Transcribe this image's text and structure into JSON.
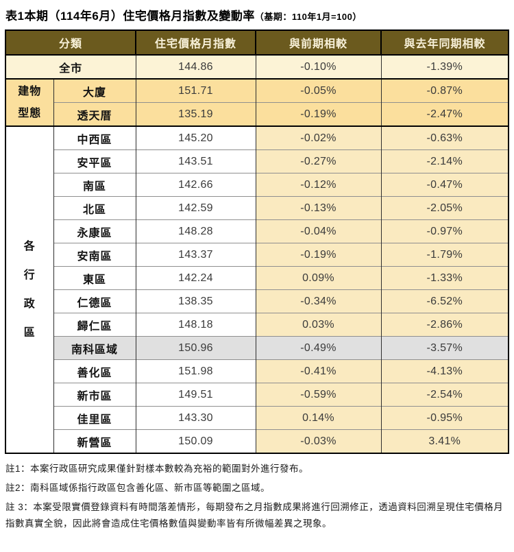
{
  "title": {
    "main": "表1本期（114年6月）住宅價格月指數及變動率",
    "suffix": "（基期：110年1月=100）"
  },
  "table": {
    "headers": [
      "分類",
      "住宅價格月指數",
      "與前期相較",
      "與去年同期相較"
    ],
    "sections": [
      {
        "kind": "citywide",
        "rows": [
          {
            "label": "全市",
            "index": "144.86",
            "mom": "-0.10%",
            "yoy": "-1.39%"
          }
        ]
      },
      {
        "kind": "group",
        "name": "建物型態",
        "name_lines": [
          "建物",
          "型態"
        ],
        "rows": [
          {
            "label": "大廈",
            "index": "151.71",
            "mom": "-0.05%",
            "yoy": "-0.87%"
          },
          {
            "label": "透天厝",
            "index": "135.19",
            "mom": "-0.19%",
            "yoy": "-2.47%"
          }
        ]
      },
      {
        "kind": "group",
        "name": "各行政區",
        "name_lines": [
          "各",
          "行",
          "政",
          "區"
        ],
        "rows": [
          {
            "label": "中西區",
            "index": "145.20",
            "mom": "-0.02%",
            "yoy": "-0.63%"
          },
          {
            "label": "安平區",
            "index": "143.51",
            "mom": "-0.27%",
            "yoy": "-2.14%"
          },
          {
            "label": "南區",
            "index": "142.66",
            "mom": "-0.12%",
            "yoy": "-0.47%"
          },
          {
            "label": "北區",
            "index": "142.59",
            "mom": "-0.13%",
            "yoy": "-2.05%"
          },
          {
            "label": "永康區",
            "index": "148.28",
            "mom": "-0.04%",
            "yoy": "-0.97%"
          },
          {
            "label": "安南區",
            "index": "143.37",
            "mom": "-0.19%",
            "yoy": "-1.79%"
          },
          {
            "label": "東區",
            "index": "142.24",
            "mom": "0.09%",
            "yoy": "-1.33%"
          },
          {
            "label": "仁德區",
            "index": "138.35",
            "mom": "-0.34%",
            "yoy": "-6.52%"
          },
          {
            "label": "歸仁區",
            "index": "148.18",
            "mom": "0.03%",
            "yoy": "-2.86%"
          },
          {
            "label": "南科區域",
            "index": "150.96",
            "mom": "-0.49%",
            "yoy": "-3.57%",
            "highlight": true
          },
          {
            "label": "善化區",
            "index": "151.98",
            "mom": "-0.41%",
            "yoy": "-4.13%"
          },
          {
            "label": "新市區",
            "index": "149.51",
            "mom": "-0.59%",
            "yoy": "-2.54%"
          },
          {
            "label": "佳里區",
            "index": "143.30",
            "mom": "0.14%",
            "yoy": "-0.95%"
          },
          {
            "label": "新營區",
            "index": "150.09",
            "mom": "-0.03%",
            "yoy": "3.41%"
          }
        ]
      }
    ]
  },
  "notes": [
    "註1：本案行政區研究成果僅針對樣本數較為充裕的範圍對外進行發布。",
    "註2：南科區域係指行政區包含善化區、新市區等範圍之區域。",
    "註 3：本案受限實價登錄資料有時間落差情形，每期發布之月指數成果將進行回溯修正，透過資料回溯呈現住宅價格月指數真實全貌，因此將會造成住宅價格數值與變動率皆有所微幅差異之現象。"
  ],
  "colors": {
    "header_bg": "#6b5a1e",
    "header_text": "#f8f1d9",
    "citywide_row": "#fcf3d6",
    "building_type_rows": "#fbdf9d",
    "district_change_cells": "#faeac0",
    "highlight_row": "#e0e0e0",
    "district_cells": "#ffffff"
  }
}
